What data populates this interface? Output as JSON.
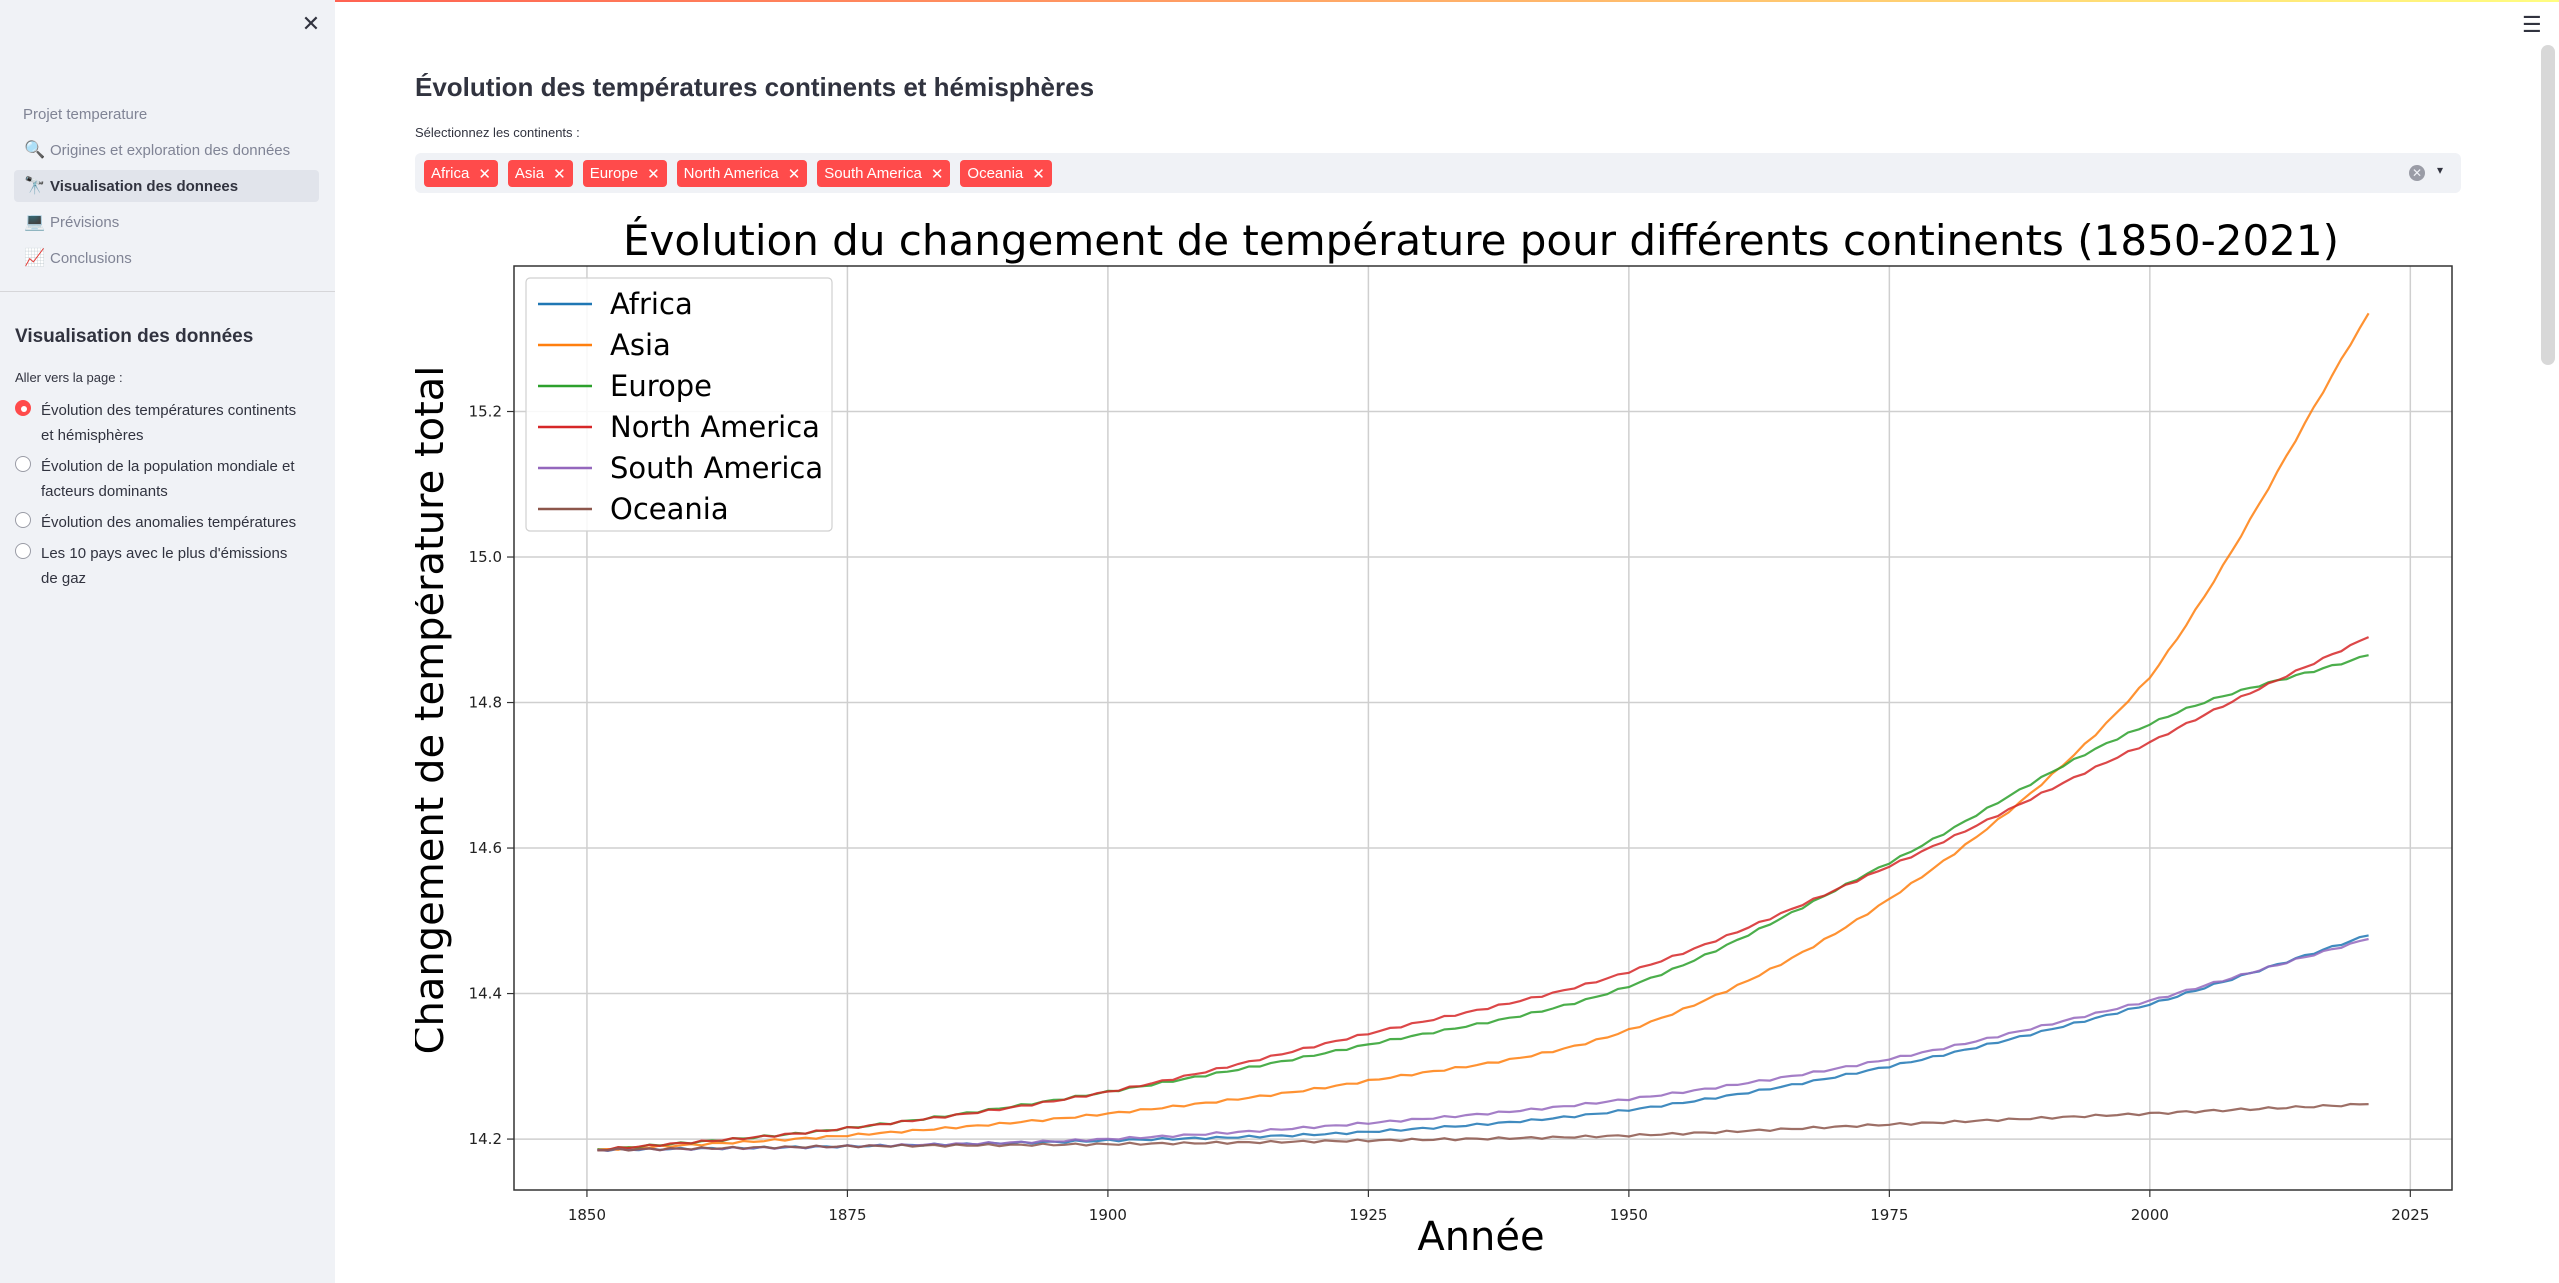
{
  "sidebar": {
    "close_icon": "close-icon",
    "heading": "Projet temperature",
    "nav": [
      {
        "icon": "🔍",
        "icon_name": "magnifier-icon",
        "label": "Origines et exploration des données",
        "active": false
      },
      {
        "icon": "🔭",
        "icon_name": "telescope-icon",
        "label": "Visualisation des donnees",
        "active": true
      },
      {
        "icon": "💻",
        "icon_name": "laptop-icon",
        "label": "Prévisions",
        "active": false
      },
      {
        "icon": "📈",
        "icon_name": "chart-icon",
        "label": "Conclusions",
        "active": false
      }
    ],
    "section_title": "Visualisation des données",
    "radio_label": "Aller vers la page :",
    "radios": [
      {
        "label": "Évolution des températures continents et hémisphères",
        "checked": true
      },
      {
        "label": "Évolution de la population mondiale et facteurs dominants",
        "checked": false
      },
      {
        "label": "Évolution des anomalies températures",
        "checked": false
      },
      {
        "label": "Les 10 pays avec le plus d'émissions de gaz",
        "checked": false
      }
    ]
  },
  "main": {
    "title": "Évolution des températures continents et hémisphères",
    "multiselect_label": "Sélectionnez les continents :",
    "tags": [
      "Africa",
      "Asia",
      "Europe",
      "North America",
      "South America",
      "Oceania"
    ],
    "accent_color": "#ff4b4b"
  },
  "chart_data": {
    "type": "line",
    "title": "Évolution du changement de température pour différents continents (1850-2021)",
    "xlabel": "Année",
    "ylabel": "Changement de température total",
    "xlim": [
      1843,
      2029
    ],
    "ylim": [
      14.13,
      15.4
    ],
    "xticks": [
      1850,
      1875,
      1900,
      1925,
      1950,
      1975,
      2000,
      2025
    ],
    "yticks": [
      14.2,
      14.4,
      14.6,
      14.8,
      15.0,
      15.2
    ],
    "ytick_labels": [
      "14.2",
      "14.4",
      "14.6",
      "14.8",
      "15.0",
      "15.2"
    ],
    "grid": true,
    "legend_position": "top-left",
    "x": [
      1851,
      1875,
      1900,
      1925,
      1950,
      1975,
      2000,
      2021
    ],
    "series": [
      {
        "name": "Africa",
        "color": "#1f77b4",
        "values": [
          14.185,
          14.19,
          14.198,
          14.21,
          14.24,
          14.3,
          14.385,
          14.48
        ]
      },
      {
        "name": "Asia",
        "color": "#ff7f0e",
        "values": [
          14.185,
          14.205,
          14.235,
          14.28,
          14.35,
          14.53,
          14.835,
          15.335
        ]
      },
      {
        "name": "Europe",
        "color": "#2ca02c",
        "values": [
          14.185,
          14.215,
          14.265,
          14.33,
          14.41,
          14.58,
          14.77,
          14.865
        ]
      },
      {
        "name": "North America",
        "color": "#d62728",
        "values": [
          14.185,
          14.215,
          14.265,
          14.345,
          14.43,
          14.575,
          14.745,
          14.89
        ]
      },
      {
        "name": "South America",
        "color": "#9467bd",
        "values": [
          14.185,
          14.19,
          14.2,
          14.222,
          14.255,
          14.31,
          14.39,
          14.475
        ]
      },
      {
        "name": "Oceania",
        "color": "#8c564b",
        "values": [
          14.185,
          14.19,
          14.193,
          14.198,
          14.205,
          14.22,
          14.235,
          14.248
        ]
      }
    ]
  }
}
